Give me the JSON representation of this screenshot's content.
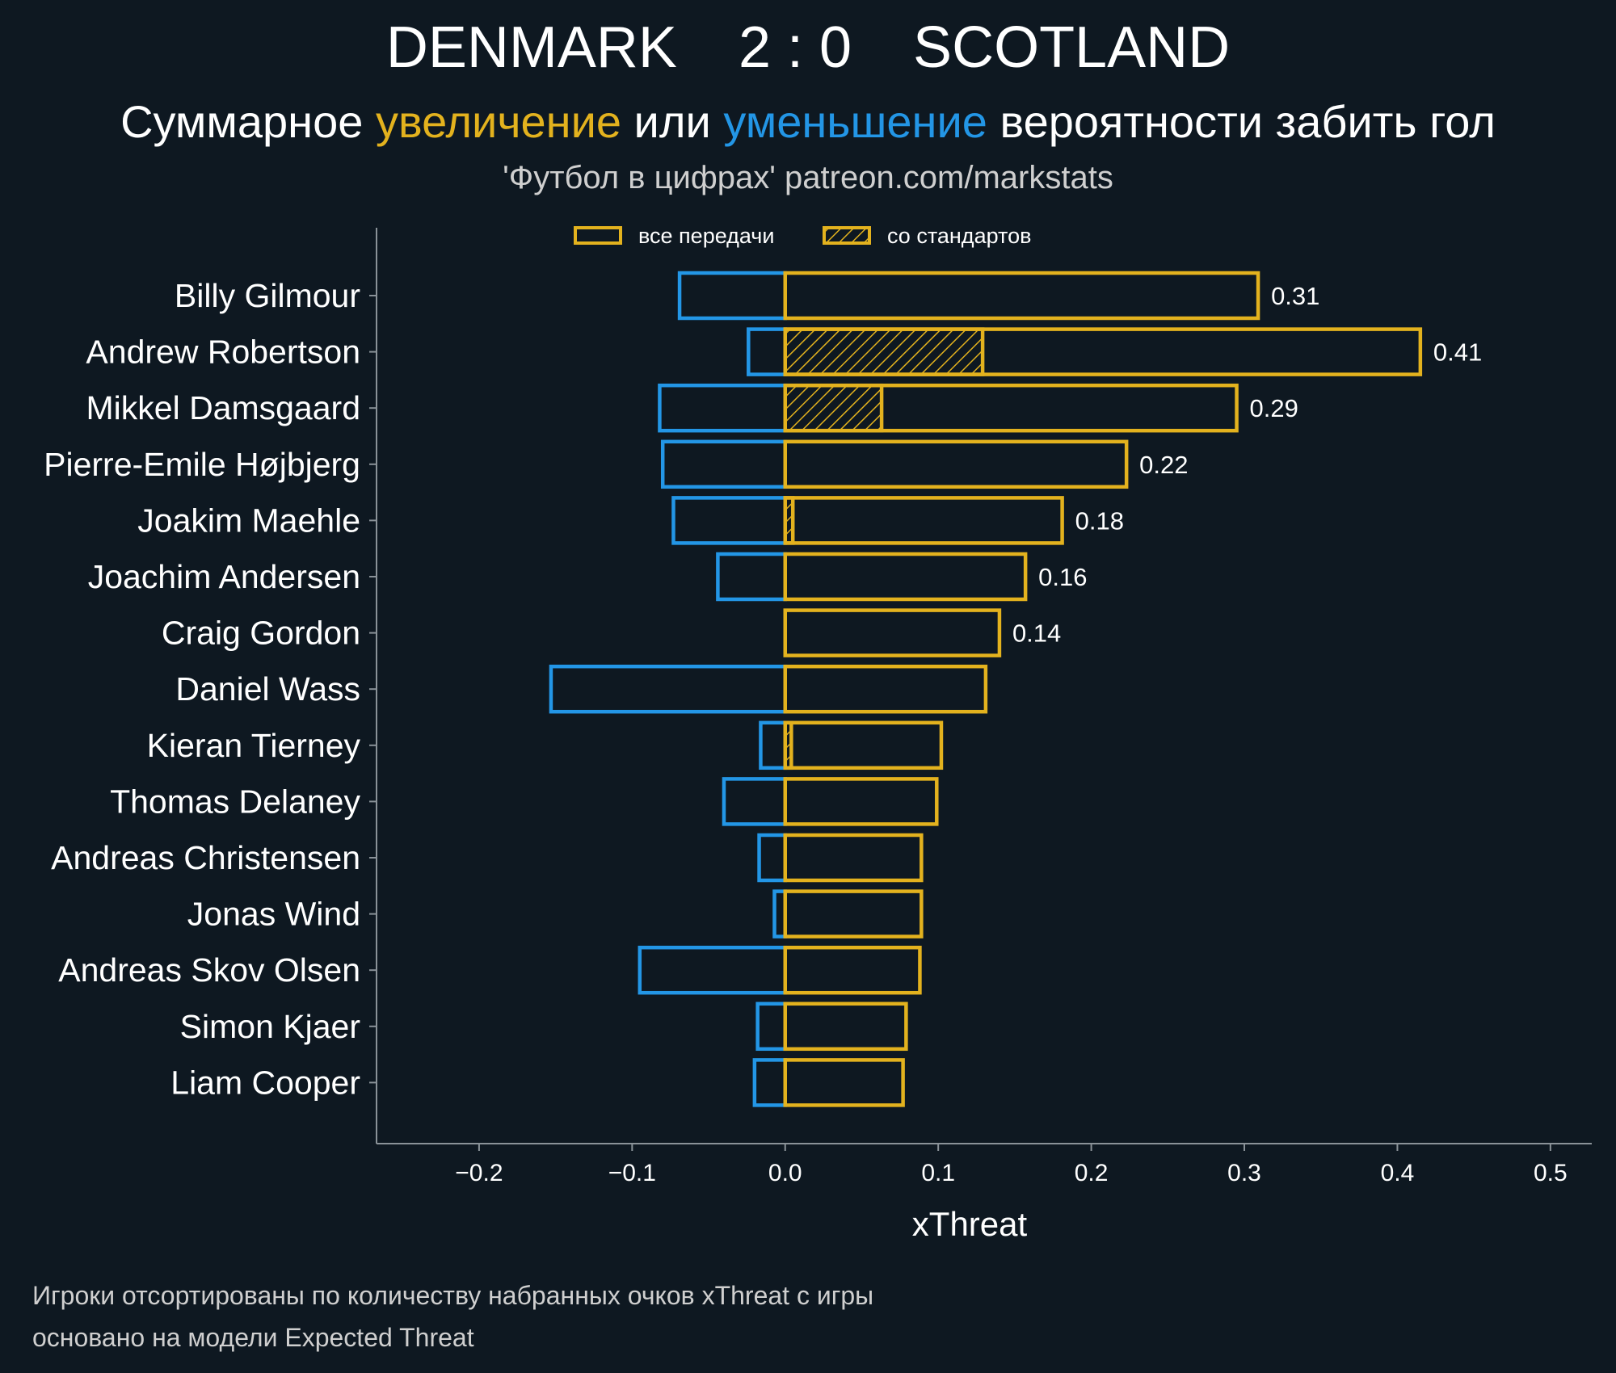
{
  "header": {
    "home_team": "DENMARK",
    "score": "2 : 0",
    "away_team": "SCOTLAND",
    "subtitle": {
      "part1": "Суммарное ",
      "increase": "увеличение",
      "part2": " или ",
      "decrease": "уменьшение",
      "part3": " вероятности забить гол"
    },
    "byline": "'Футбол в цифрах' patreon.com/markstats"
  },
  "colors": {
    "background": "#0e1821",
    "increase": "#e3b21e",
    "decrease": "#2396e6",
    "axis": "#8a9298",
    "text": "#ffffff",
    "muted": "#cfcfcf"
  },
  "chart_data": {
    "type": "bar",
    "orientation": "horizontal",
    "title": "DENMARK 2 : 0 SCOTLAND",
    "xlabel": "xThreat",
    "ylabel": "",
    "xlim": [
      -0.267,
      0.527
    ],
    "xticks": [
      -0.2,
      -0.1,
      0.0,
      0.1,
      0.2,
      0.3,
      0.4,
      0.5
    ],
    "xtick_labels": [
      "−0.2",
      "−0.1",
      "0.0",
      "0.1",
      "0.2",
      "0.3",
      "0.4",
      "0.5"
    ],
    "legend": {
      "placement": "top-center",
      "entries": [
        "все передачи",
        "со стандартов"
      ]
    },
    "categories": [
      "Billy Gilmour",
      "Andrew Robertson",
      "Mikkel Damsgaard",
      "Pierre-Emile Højbjerg",
      "Joakim Maehle",
      "Joachim Andersen",
      "Craig Gordon",
      "Daniel Wass",
      "Kieran Tierney",
      "Thomas Delaney",
      "Andreas Christensen",
      "Jonas Wind",
      "Andreas Skov Olsen",
      "Simon Kjaer",
      "Liam Cooper"
    ],
    "series": [
      {
        "name": "увеличение (все передачи)",
        "values": [
          0.309,
          0.415,
          0.295,
          0.223,
          0.181,
          0.157,
          0.14,
          0.131,
          0.102,
          0.099,
          0.089,
          0.089,
          0.088,
          0.079,
          0.077
        ]
      },
      {
        "name": "уменьшение (все передачи)",
        "values": [
          -0.069,
          -0.024,
          -0.082,
          -0.08,
          -0.073,
          -0.044,
          0.0,
          -0.153,
          -0.016,
          -0.04,
          -0.017,
          -0.007,
          -0.095,
          -0.018,
          -0.02
        ]
      },
      {
        "name": "со стандартов",
        "values": [
          0.0,
          0.129,
          0.063,
          0.0,
          0.005,
          0.0,
          0.0,
          0.0,
          0.004,
          0.0,
          0.0,
          0.0,
          0.0,
          0.0,
          0.0
        ]
      }
    ],
    "value_labels": [
      "0.31",
      "0.41",
      "0.29",
      "0.22",
      "0.18",
      "0.16",
      "0.14",
      "",
      "",
      "",
      "",
      "",
      "",
      "",
      ""
    ]
  },
  "footnotes": {
    "line1": "Игроки отсортированы по количеству набранных очков xThreat с игры",
    "line2": "основано на модели Expected Threat"
  }
}
